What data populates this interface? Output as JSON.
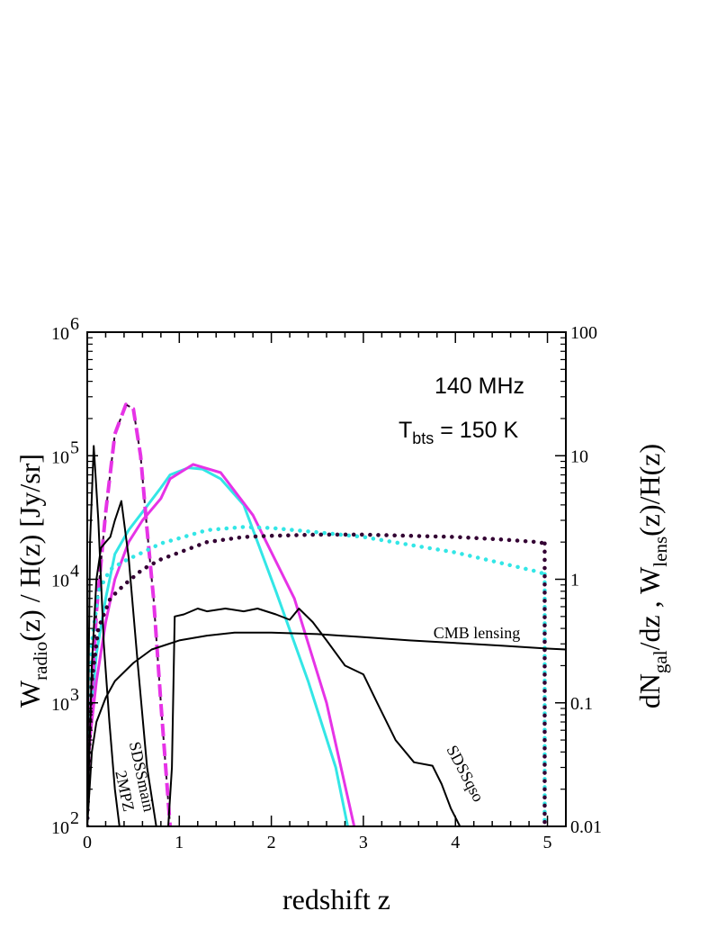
{
  "chart_data": {
    "type": "line",
    "title": "",
    "annotations": {
      "frequency": "140 MHz",
      "temp_prefix": "T",
      "temp_sub": "bts",
      "temp_suffix": " = 150 K"
    },
    "xlabel": "redshift z",
    "ylabel_left": {
      "p1": "W",
      "sub1": "radio",
      "p2": "(z) / H(z) [Jy/sr]"
    },
    "ylabel_right": {
      "p1": "dN",
      "sub1": "gal",
      "p2": "/dz  ,  W",
      "sub2": "lens",
      "p3": "(z)/H(z)"
    },
    "xlim": [
      0,
      5.2
    ],
    "ylim_left": [
      100,
      1000000
    ],
    "ylim_right": [
      0.01,
      100
    ],
    "yscale": "log",
    "x_ticks": [
      "0",
      "1",
      "2",
      "3",
      "4",
      "5"
    ],
    "y_left_ticks": [
      {
        "base": "10",
        "exp": "2"
      },
      {
        "base": "10",
        "exp": "3"
      },
      {
        "base": "10",
        "exp": "4"
      },
      {
        "base": "10",
        "exp": "5"
      },
      {
        "base": "10",
        "exp": "6"
      }
    ],
    "y_right_ticks": [
      "0.01",
      "0.1",
      "1",
      "10",
      "100"
    ],
    "grid": false,
    "colors": {
      "cyan": "#33e6e6",
      "magenta": "#e633e6",
      "dark": "#330033",
      "black": "#000000"
    },
    "series": [
      {
        "label": "",
        "axis": "left",
        "style": "solid",
        "color": "cyan",
        "x": [
          0,
          0.05,
          0.1,
          0.2,
          0.3,
          0.45,
          0.6,
          0.8,
          0.9,
          1.1,
          1.25,
          1.45,
          1.7,
          2.05,
          2.4,
          2.7,
          2.83
        ],
        "y": [
          400,
          1000,
          2500,
          7000,
          16000,
          25000,
          35000,
          55000,
          70000,
          80000,
          78000,
          65000,
          40000,
          8000,
          1500,
          300,
          100
        ]
      },
      {
        "label": "",
        "axis": "left",
        "style": "solid",
        "color": "magenta",
        "x": [
          0,
          0.05,
          0.1,
          0.2,
          0.3,
          0.45,
          0.6,
          0.8,
          0.9,
          1.15,
          1.45,
          1.8,
          2.25,
          2.6,
          2.9
        ],
        "y": [
          300,
          700,
          1500,
          4500,
          10000,
          20000,
          30000,
          45000,
          65000,
          85000,
          73000,
          33000,
          7000,
          1000,
          100
        ]
      },
      {
        "label": "",
        "axis": "left",
        "style": "dashed",
        "color": "magenta",
        "x": [
          0,
          0.04,
          0.1,
          0.2,
          0.3,
          0.42,
          0.5,
          0.58,
          0.65,
          0.72,
          0.8,
          0.9
        ],
        "y": [
          200,
          900,
          5500,
          35000,
          150000,
          260000,
          240000,
          100000,
          25000,
          7000,
          1000,
          100
        ]
      },
      {
        "label": "",
        "axis": "left",
        "style": "dotted",
        "color": "cyan",
        "x": [
          0,
          0.02,
          0.05,
          0.12,
          0.25,
          0.4,
          0.6,
          0.8,
          1.0,
          1.3,
          1.7,
          2.0,
          2.5,
          3.0,
          3.5,
          4.0,
          4.5,
          4.9,
          4.97
        ],
        "y": [
          100,
          700,
          3000,
          8000,
          12000,
          14000,
          16500,
          19500,
          21500,
          25000,
          26500,
          26000,
          24000,
          22000,
          19000,
          16500,
          13500,
          11500,
          11000
        ]
      },
      {
        "label": "",
        "axis": "left",
        "style": "dotted",
        "color": "dark",
        "x": [
          0,
          0.02,
          0.05,
          0.12,
          0.25,
          0.4,
          0.6,
          0.8,
          1.0,
          1.3,
          1.7,
          2.0,
          2.5,
          3.0,
          3.5,
          4.0,
          4.5,
          4.9,
          4.97
        ],
        "y": [
          100,
          400,
          1500,
          4000,
          7000,
          9000,
          12000,
          14500,
          16500,
          20000,
          22000,
          22500,
          23000,
          23000,
          22500,
          22000,
          21000,
          20000,
          19500
        ]
      },
      {
        "label": "2MPZ",
        "axis": "left",
        "style": "solid",
        "color": "black",
        "x": [
          0,
          0.03,
          0.07,
          0.12,
          0.18,
          0.24,
          0.3,
          0.35
        ],
        "y": [
          150,
          20000,
          120000,
          30000,
          3000,
          700,
          200,
          100
        ]
      },
      {
        "label": "SDSSmain",
        "axis": "left",
        "style": "solid",
        "color": "black",
        "x": [
          0,
          0.05,
          0.1,
          0.15,
          0.2,
          0.25,
          0.3,
          0.37,
          0.45,
          0.55,
          0.65,
          0.75
        ],
        "y": [
          100,
          2000,
          10000,
          18000,
          20000,
          22000,
          30000,
          43000,
          15000,
          2000,
          300,
          100
        ]
      },
      {
        "label": "SDSSqso",
        "axis": "left",
        "style": "solid",
        "color": "black",
        "x": [
          0.88,
          0.92,
          0.95,
          1.05,
          1.2,
          1.3,
          1.5,
          1.7,
          1.85,
          2.05,
          2.2,
          2.3,
          2.45,
          2.6,
          2.8,
          3.0,
          3.15,
          3.35,
          3.55,
          3.75,
          3.85,
          3.95,
          4.05
        ],
        "y": [
          100,
          300,
          5000,
          5200,
          5800,
          5500,
          5800,
          5500,
          5800,
          5200,
          4700,
          5800,
          4500,
          3200,
          2000,
          1700,
          1000,
          500,
          330,
          310,
          220,
          140,
          100
        ]
      },
      {
        "label": "CMB lensing",
        "axis": "left",
        "style": "solid",
        "color": "black",
        "x": [
          0,
          0.05,
          0.1,
          0.2,
          0.3,
          0.5,
          0.7,
          1.0,
          1.3,
          1.6,
          2.0,
          2.5,
          3.0,
          3.5,
          4.0,
          4.5,
          5.0,
          5.2
        ],
        "y": [
          100,
          400,
          700,
          1100,
          1500,
          2100,
          2700,
          3200,
          3500,
          3700,
          3700,
          3600,
          3400,
          3200,
          3050,
          2900,
          2750,
          2700
        ]
      }
    ]
  }
}
